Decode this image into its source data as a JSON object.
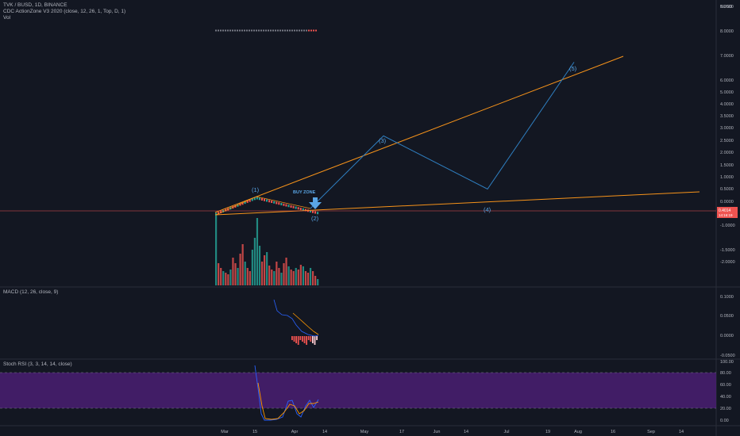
{
  "legend": {
    "symbol": "TVK / BUSD, 1D, BINANCE",
    "indicator": "CDC ActionZone V3 2020 (close, 12, 26, 1, Top, D, 1)",
    "volume": "Vol",
    "macd": "MACD (12, 26, close, 9)",
    "stoch": "Stoch RSI (3, 3, 14, 14, close)"
  },
  "currency": "BUSD",
  "chart_data": [
    {
      "type": "line",
      "name": "price",
      "y_ticks": [
        "9.0000",
        "8.0000",
        "7.0000",
        "6.0000",
        "5.0000",
        "4.0000",
        "3.5000",
        "3.0000",
        "2.5000",
        "2.0000",
        "1.5000",
        "1.0000",
        "0.5000",
        "0.0000",
        "-0.5000",
        "-1.0000",
        "-1.5000",
        "-2.0000"
      ],
      "x_ticks": [
        "Mar",
        "15",
        "Apr",
        "14",
        "May",
        "17",
        "Jun",
        "14",
        "Jul",
        "19",
        "Aug",
        "16",
        "Sep",
        "14"
      ],
      "price_label": "0.4014",
      "countdown_label": "14:16:19",
      "annotations": [
        "(1)",
        "(2)",
        "(3)",
        "(4)",
        "(5)",
        "BUY ZONE"
      ],
      "wave_points": [
        {
          "label": "(2)",
          "date": "Apr 10",
          "value": 0.4
        },
        {
          "label": "(3)",
          "date": "May 11",
          "value": 3.2
        },
        {
          "label": "(4)",
          "date": "Jun 28",
          "value": 1.0
        },
        {
          "label": "(5)",
          "date": "Aug 1",
          "value": 6.25
        }
      ],
      "colors": {
        "trendline": "#f7931a",
        "wave": "#2962ff",
        "up": "#26a69a",
        "down": "#ef5350"
      }
    },
    {
      "type": "line",
      "name": "macd",
      "y_ticks": [
        "0.1000",
        "0.0500",
        "0.0000",
        "-0.0500"
      ]
    },
    {
      "type": "line",
      "name": "stoch_rsi",
      "y_ticks": [
        "100.00",
        "80.00",
        "60.00",
        "40.00",
        "20.00",
        "0.00"
      ],
      "band": [
        20,
        80
      ],
      "colors": {
        "k": "#2962ff",
        "d": "#ff9800",
        "band": "#7e57c2"
      }
    }
  ]
}
